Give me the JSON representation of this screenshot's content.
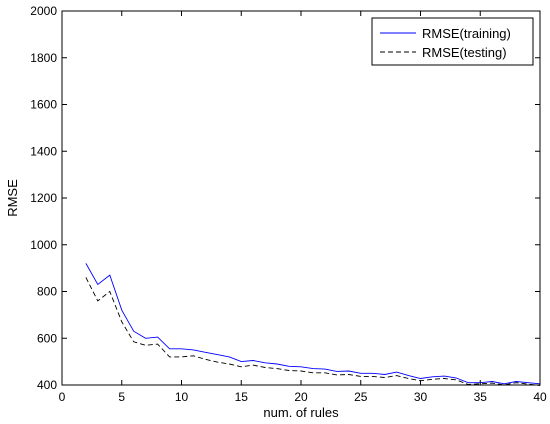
{
  "chart_data": {
    "type": "line",
    "title": "",
    "xlabel": "num. of rules",
    "ylabel": "RMSE",
    "xlim": [
      0,
      40
    ],
    "ylim": [
      400,
      2000
    ],
    "xticks": [
      0,
      5,
      10,
      15,
      20,
      25,
      30,
      35,
      40
    ],
    "yticks": [
      400,
      600,
      800,
      1000,
      1200,
      1400,
      1600,
      1800,
      2000
    ],
    "grid": false,
    "legend_position": "top-right",
    "x": [
      2,
      3,
      4,
      5,
      6,
      7,
      8,
      9,
      10,
      11,
      12,
      13,
      14,
      15,
      16,
      17,
      18,
      19,
      20,
      21,
      22,
      23,
      24,
      25,
      26,
      27,
      28,
      29,
      30,
      31,
      32,
      33,
      34,
      35,
      36,
      37,
      38,
      39,
      40
    ],
    "series": [
      {
        "name": "RMSE(training)",
        "color": "#0000ff",
        "line_style": "solid",
        "values": [
          920,
          830,
          870,
          720,
          630,
          600,
          605,
          555,
          555,
          550,
          540,
          530,
          520,
          500,
          505,
          495,
          490,
          480,
          478,
          470,
          468,
          458,
          460,
          450,
          450,
          445,
          455,
          440,
          428,
          435,
          438,
          430,
          410,
          410,
          415,
          405,
          415,
          410,
          405
        ]
      },
      {
        "name": "RMSE(testing)",
        "color": "#000000",
        "line_style": "dashed",
        "values": [
          860,
          760,
          800,
          670,
          585,
          570,
          575,
          520,
          520,
          525,
          510,
          498,
          490,
          478,
          485,
          475,
          470,
          462,
          460,
          452,
          452,
          443,
          445,
          437,
          437,
          432,
          440,
          428,
          418,
          425,
          428,
          422,
          402,
          405,
          408,
          400,
          410,
          404,
          398
        ]
      }
    ]
  }
}
